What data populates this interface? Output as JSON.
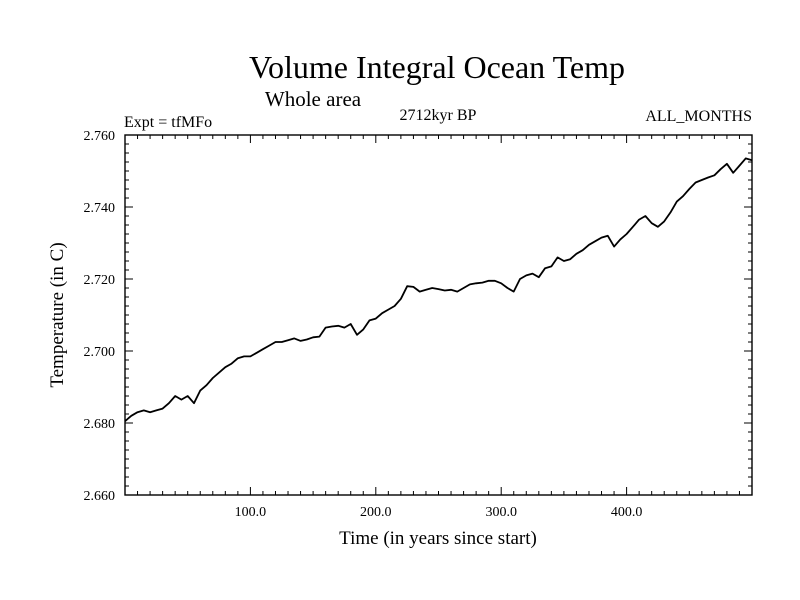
{
  "chart_data": {
    "type": "line",
    "title": "Volume Integral Ocean Temp",
    "subtitle": "Whole area",
    "left_label": "Expt = tfMFo",
    "center_label": "2712kyr BP",
    "right_label": "ALL_MONTHS",
    "xlabel": "Time (in years since start)",
    "ylabel": "Temperature (in C)",
    "xlim": [
      0,
      500
    ],
    "ylim": [
      2.66,
      2.76
    ],
    "x_tick_values": [
      100,
      200,
      300,
      400
    ],
    "x_tick_labels": [
      "100.0",
      "200.0",
      "300.0",
      "400.0"
    ],
    "y_tick_values": [
      2.66,
      2.68,
      2.7,
      2.72,
      2.74,
      2.76
    ],
    "y_tick_labels": [
      "2.660",
      "2.680",
      "2.700",
      "2.720",
      "2.740",
      "2.760"
    ],
    "grid": false,
    "series": [
      {
        "name": "Volume Integral Ocean Temp",
        "x": [
          0,
          5,
          10,
          15,
          20,
          25,
          30,
          35,
          40,
          45,
          50,
          55,
          60,
          65,
          70,
          75,
          80,
          85,
          90,
          95,
          100,
          105,
          110,
          115,
          120,
          125,
          130,
          135,
          140,
          145,
          150,
          155,
          160,
          165,
          170,
          175,
          180,
          185,
          190,
          195,
          200,
          205,
          210,
          215,
          220,
          225,
          230,
          235,
          240,
          245,
          250,
          255,
          260,
          265,
          270,
          275,
          280,
          285,
          290,
          295,
          300,
          305,
          310,
          315,
          320,
          325,
          330,
          335,
          340,
          345,
          350,
          355,
          360,
          365,
          370,
          375,
          380,
          385,
          390,
          395,
          400,
          405,
          410,
          415,
          420,
          425,
          430,
          435,
          440,
          445,
          450,
          455,
          460,
          465,
          470,
          475,
          480,
          485,
          490,
          495,
          500
        ],
        "values": [
          2.6805,
          2.682,
          2.683,
          2.6835,
          2.683,
          2.6835,
          2.684,
          2.6855,
          2.6875,
          2.6865,
          2.6875,
          2.6855,
          2.689,
          2.6905,
          2.6925,
          2.694,
          2.6955,
          2.6965,
          2.698,
          2.6985,
          2.6985,
          2.6995,
          2.7005,
          2.7015,
          2.7025,
          2.7025,
          2.703,
          2.7035,
          2.7028,
          2.7032,
          2.7038,
          2.704,
          2.7065,
          2.7068,
          2.707,
          2.7065,
          2.7075,
          2.7045,
          2.706,
          2.7085,
          2.709,
          2.7105,
          2.7115,
          2.7125,
          2.7145,
          2.718,
          2.7178,
          2.7165,
          2.717,
          2.7175,
          2.7172,
          2.7168,
          2.717,
          2.7165,
          2.7175,
          2.7185,
          2.7188,
          2.719,
          2.7195,
          2.7195,
          2.7188,
          2.7175,
          2.7165,
          2.72,
          2.721,
          2.7215,
          2.7205,
          2.723,
          2.7235,
          2.726,
          2.725,
          2.7255,
          2.727,
          2.728,
          2.7295,
          2.7305,
          2.7315,
          2.732,
          2.729,
          2.731,
          2.7325,
          2.7345,
          2.7365,
          2.7375,
          2.7355,
          2.7345,
          2.736,
          2.7385,
          2.7415,
          2.743,
          2.745,
          2.7468,
          2.7475,
          2.7482,
          2.7488,
          2.7505,
          2.752,
          2.7495,
          2.7515,
          2.7535,
          2.753
        ]
      }
    ]
  }
}
